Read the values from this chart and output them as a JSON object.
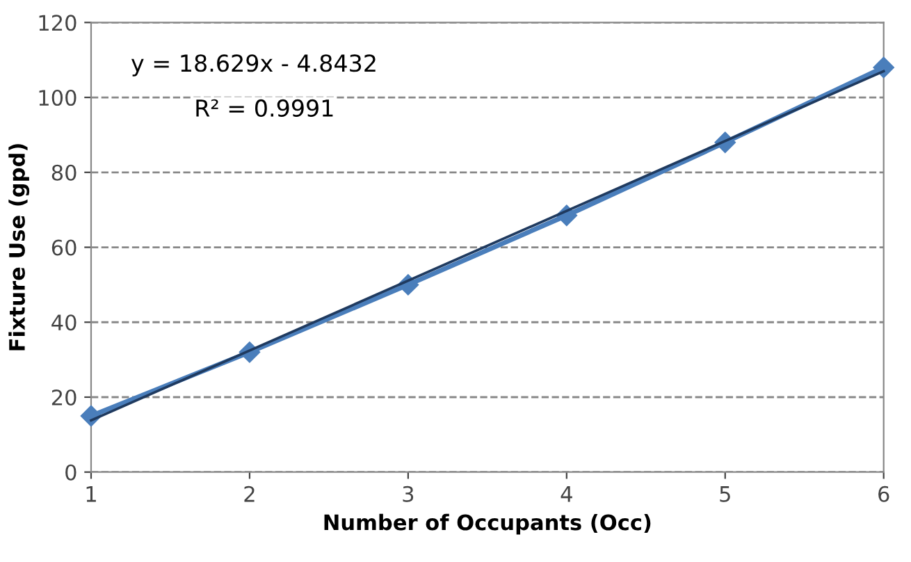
{
  "chart_data": {
    "type": "line",
    "xlabel": "Number of Occupants (Occ)",
    "ylabel": "Fixture Use (gpd)",
    "x": [
      1,
      2,
      3,
      4,
      5,
      6
    ],
    "series": [
      {
        "color": "#4a7ebb",
        "values": [
          15,
          32,
          50,
          68.5,
          88,
          108
        ],
        "marker": "diamond"
      },
      {
        "type": "line",
        "color": "#1f3a5f",
        "x": [
          1,
          6
        ],
        "values": [
          13.8,
          107
        ],
        "marker": "none"
      }
    ],
    "annotations": [
      "y = 18.629x - 4.8432",
      "R² = 0.9991"
    ],
    "xlim": [
      1,
      6
    ],
    "xticks": [
      1,
      2,
      3,
      4,
      5,
      6
    ],
    "ylim": [
      0,
      120
    ],
    "yticks": [
      0,
      20,
      40,
      60,
      80,
      100,
      120
    ],
    "grid": "y"
  }
}
